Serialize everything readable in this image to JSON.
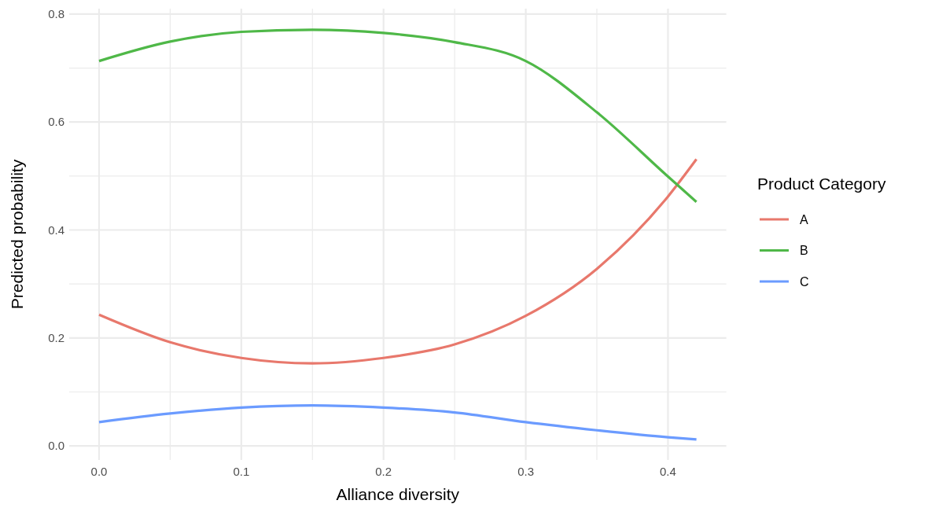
{
  "chart_data": {
    "type": "line",
    "xlabel": "Alliance diversity",
    "ylabel": "Predicted probability",
    "legend_title": "Product Category",
    "legend": "right",
    "grid": true,
    "xlim": [
      -0.021,
      0.441
    ],
    "ylim": [
      -0.026,
      0.81
    ],
    "xticks": [
      {
        "value": 0,
        "label": "0.0"
      },
      {
        "value": 0.05,
        "label": null
      },
      0.1,
      {
        "value": 0.15,
        "label": null
      },
      0.2,
      {
        "value": 0.25,
        "label": null
      },
      0.3,
      {
        "value": 0.35,
        "label": null
      },
      0.4
    ],
    "yticks": [
      {
        "value": 0,
        "label": "0.0"
      },
      {
        "value": 0.1,
        "label": null
      },
      0.2,
      {
        "value": 0.3,
        "label": null
      },
      0.4,
      {
        "value": 0.5,
        "label": null
      },
      0.6,
      {
        "value": 0.7,
        "label": null
      },
      0.8
    ],
    "x": [
      0,
      0.05,
      0.1,
      0.15,
      0.2,
      0.25,
      0.3,
      0.35,
      0.4,
      0.42
    ],
    "series": [
      {
        "name": "A",
        "color": "#e8786c",
        "values": [
          0.243,
          0.192,
          0.163,
          0.153,
          0.163,
          0.188,
          0.241,
          0.328,
          0.462,
          0.531
        ]
      },
      {
        "name": "B",
        "color": "#4fb848",
        "values": [
          0.713,
          0.749,
          0.767,
          0.771,
          0.765,
          0.748,
          0.713,
          0.618,
          0.499,
          0.452
        ]
      },
      {
        "name": "C",
        "color": "#6b9bff",
        "values": [
          0.044,
          0.06,
          0.071,
          0.075,
          0.071,
          0.062,
          0.044,
          0.029,
          0.016,
          0.012
        ]
      }
    ]
  }
}
